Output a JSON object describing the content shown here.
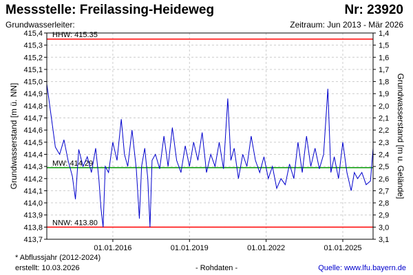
{
  "header": {
    "station": "Messstelle: Freilassing-Heideweg",
    "number": "Nr: 23920",
    "type_label": "Grundwasserleiter:",
    "period": "Zeitraum: Jun 2013 - Mär 2026"
  },
  "footer": {
    "note": "* Abflussjahr (2012-2024)",
    "created": "erstellt:  10.03.2026",
    "raw": "- Rohdaten -",
    "source_label": "Quelle: ",
    "source_link": "www.lfu.bayern.de"
  },
  "chart_data": {
    "type": "line",
    "ylabel": "Grundwasserstand [m ü. NN]",
    "ylabel_right": "Grundwasserstand [m u. Gelände]",
    "ylim": [
      413.7,
      415.4
    ],
    "ylim_right": [
      1.4,
      3.1
    ],
    "yticks": [
      "415,4",
      "415,3",
      "415,2",
      "415,1",
      "415,0",
      "414,9",
      "414,8",
      "414,7",
      "414,6",
      "414,5",
      "414,4",
      "414,3",
      "414,2",
      "414,1",
      "414,0",
      "413,9",
      "413,8",
      "413,7"
    ],
    "yticks_right": [
      "1,4",
      "1,5",
      "1,6",
      "1,7",
      "1,8",
      "1,9",
      "2,0",
      "2,1",
      "2,2",
      "2,3",
      "2,4",
      "2,5",
      "2,6",
      "2,7",
      "2,8",
      "2,9",
      "3,0",
      "3,1"
    ],
    "xlim": [
      "2013-06-01",
      "2026-03-10"
    ],
    "xticks": [
      "01.01.2016",
      "01.01.2019",
      "01.01.2022",
      "01.01.2025"
    ],
    "grid": true,
    "reference_lines": [
      {
        "label": "HHW: 415.35",
        "value": 415.35,
        "color": "#ff0000"
      },
      {
        "label": "MW: 414.29",
        "value": 414.29,
        "color": "#009900"
      },
      {
        "label": "NNW: 413.80",
        "value": 413.8,
        "color": "#ff0000"
      }
    ],
    "series": [
      {
        "color": "#0000cc",
        "points": [
          [
            "2013-06-01",
            414.98
          ],
          [
            "2013-08-01",
            414.72
          ],
          [
            "2013-10-01",
            414.46
          ],
          [
            "2013-12-01",
            414.4
          ],
          [
            "2014-02-01",
            414.52
          ],
          [
            "2014-04-01",
            414.35
          ],
          [
            "2014-06-01",
            414.22
          ],
          [
            "2014-07-15",
            414.03
          ],
          [
            "2014-09-01",
            414.44
          ],
          [
            "2014-11-01",
            414.3
          ],
          [
            "2015-01-01",
            414.38
          ],
          [
            "2015-03-01",
            414.25
          ],
          [
            "2015-05-01",
            414.45
          ],
          [
            "2015-06-15",
            414.2
          ],
          [
            "2015-07-15",
            413.96
          ],
          [
            "2015-08-15",
            413.8
          ],
          [
            "2015-09-15",
            414.3
          ],
          [
            "2015-11-01",
            414.25
          ],
          [
            "2016-01-01",
            414.5
          ],
          [
            "2016-03-01",
            414.35
          ],
          [
            "2016-05-01",
            414.69
          ],
          [
            "2016-06-15",
            414.4
          ],
          [
            "2016-08-01",
            414.3
          ],
          [
            "2016-10-01",
            414.6
          ],
          [
            "2016-12-01",
            414.28
          ],
          [
            "2017-01-15",
            413.87
          ],
          [
            "2017-02-15",
            414.3
          ],
          [
            "2017-04-01",
            414.45
          ],
          [
            "2017-05-15",
            414.2
          ],
          [
            "2017-06-15",
            413.8
          ],
          [
            "2017-07-15",
            414.35
          ],
          [
            "2017-09-01",
            414.4
          ],
          [
            "2017-11-01",
            414.28
          ],
          [
            "2018-01-01",
            414.55
          ],
          [
            "2018-03-01",
            414.3
          ],
          [
            "2018-05-01",
            414.62
          ],
          [
            "2018-07-01",
            414.35
          ],
          [
            "2018-09-01",
            414.25
          ],
          [
            "2018-11-01",
            414.47
          ],
          [
            "2019-01-01",
            414.3
          ],
          [
            "2019-03-01",
            414.5
          ],
          [
            "2019-05-01",
            414.35
          ],
          [
            "2019-07-01",
            414.58
          ],
          [
            "2019-09-01",
            414.25
          ],
          [
            "2019-11-01",
            414.4
          ],
          [
            "2020-01-01",
            414.3
          ],
          [
            "2020-03-01",
            414.5
          ],
          [
            "2020-05-01",
            414.28
          ],
          [
            "2020-07-01",
            414.86
          ],
          [
            "2020-08-15",
            414.35
          ],
          [
            "2020-10-01",
            414.45
          ],
          [
            "2020-12-01",
            414.2
          ],
          [
            "2021-02-01",
            414.4
          ],
          [
            "2021-04-01",
            414.3
          ],
          [
            "2021-06-01",
            414.55
          ],
          [
            "2021-08-01",
            414.35
          ],
          [
            "2021-10-01",
            414.25
          ],
          [
            "2021-12-01",
            414.38
          ],
          [
            "2022-02-01",
            414.2
          ],
          [
            "2022-04-01",
            414.3
          ],
          [
            "2022-06-01",
            414.12
          ],
          [
            "2022-08-01",
            414.2
          ],
          [
            "2022-10-01",
            414.15
          ],
          [
            "2022-12-01",
            414.32
          ],
          [
            "2023-02-01",
            414.2
          ],
          [
            "2023-04-01",
            414.5
          ],
          [
            "2023-06-01",
            414.25
          ],
          [
            "2023-08-01",
            414.55
          ],
          [
            "2023-10-01",
            414.3
          ],
          [
            "2023-12-01",
            414.45
          ],
          [
            "2024-02-01",
            414.28
          ],
          [
            "2024-04-01",
            414.4
          ],
          [
            "2024-06-01",
            414.94
          ],
          [
            "2024-07-15",
            414.25
          ],
          [
            "2024-09-01",
            414.38
          ],
          [
            "2024-11-01",
            414.2
          ],
          [
            "2025-01-01",
            414.5
          ],
          [
            "2025-03-01",
            414.25
          ],
          [
            "2025-05-01",
            414.1
          ],
          [
            "2025-06-15",
            414.25
          ],
          [
            "2025-08-01",
            414.2
          ],
          [
            "2025-10-01",
            414.25
          ],
          [
            "2025-12-01",
            414.15
          ],
          [
            "2026-02-01",
            414.18
          ],
          [
            "2026-03-10",
            414.45
          ]
        ]
      }
    ]
  }
}
